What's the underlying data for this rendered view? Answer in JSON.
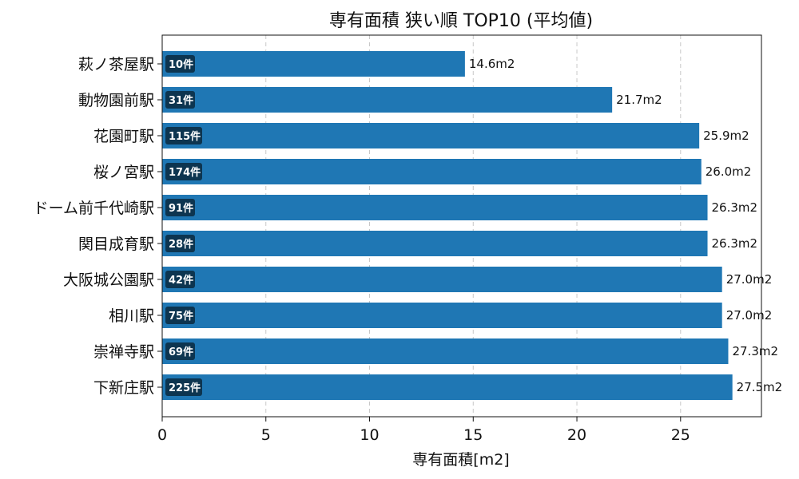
{
  "chart_data": {
    "type": "bar",
    "orientation": "horizontal",
    "title": "専有面積 狭い順 TOP10 (平均値)",
    "xlabel": "専有面積[m2]",
    "ylabel": "",
    "xlim": [
      0,
      28.9
    ],
    "xticks": [
      0,
      5,
      10,
      15,
      20,
      25
    ],
    "grid": "x-dashed",
    "bar_color": "#1f77b4",
    "badge_color": "#0d3550",
    "value_suffix": "m2",
    "categories": [
      "萩ノ茶屋駅",
      "動物園前駅",
      "花園町駅",
      "桜ノ宮駅",
      "ドーム前千代崎駅",
      "関目成育駅",
      "大阪城公園駅",
      "相川駅",
      "崇禅寺駅",
      "下新庄駅"
    ],
    "values": [
      14.6,
      21.7,
      25.9,
      26.0,
      26.3,
      26.3,
      27.0,
      27.0,
      27.3,
      27.5
    ],
    "value_labels": [
      "14.6m2",
      "21.7m2",
      "25.9m2",
      "26.0m2",
      "26.3m2",
      "26.3m2",
      "27.0m2",
      "27.0m2",
      "27.3m2",
      "27.5m2"
    ],
    "counts": [
      "10件",
      "31件",
      "115件",
      "174件",
      "91件",
      "28件",
      "42件",
      "75件",
      "69件",
      "225件"
    ]
  }
}
